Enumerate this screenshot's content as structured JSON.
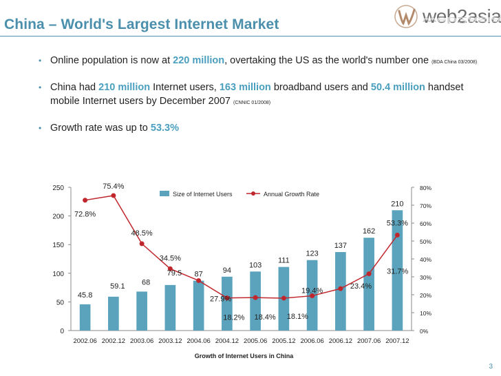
{
  "slide": {
    "title": "China – World's Largest Internet Market",
    "logo_text": "web2asia",
    "page_number": "3",
    "colors": {
      "accent": "#4a8fab",
      "highlight": "#4a9fbf",
      "bar": "#5ba3bd",
      "line": "#c0272d"
    }
  },
  "bullets": [
    {
      "parts": [
        {
          "t": "Online population is now at "
        },
        {
          "t": "220 million",
          "hl": true
        },
        {
          "t": ", overtaking the US as the world's number one "
        },
        {
          "t": "(BDA China 03/2008)",
          "src": true
        }
      ]
    },
    {
      "parts": [
        {
          "t": "China had "
        },
        {
          "t": "210 million",
          "hl": true
        },
        {
          "t": " Internet users, "
        },
        {
          "t": "163 million",
          "hl": true
        },
        {
          "t": " broadband users and "
        },
        {
          "t": "50.4 million",
          "hl": true
        },
        {
          "t": " handset mobile Internet users by December 2007 "
        },
        {
          "t": "(CNNIC 01/2008)",
          "src": true
        }
      ]
    },
    {
      "parts": [
        {
          "t": "Growth rate was up to "
        },
        {
          "t": "53.3%",
          "hl": true
        }
      ]
    }
  ],
  "chart_data": {
    "type": "bar",
    "title": "Growth of Internet Users in China",
    "categories": [
      "2002.06",
      "2002.12",
      "2003.06",
      "2003.12",
      "2004.06",
      "2004.12",
      "2005.06",
      "2005.12",
      "2006.06",
      "2006.12",
      "2007.06",
      "2007.12"
    ],
    "series": [
      {
        "name": "Size of Internet Users",
        "type": "bar",
        "axis": "left",
        "values": [
          45.8,
          59.1,
          68,
          79.5,
          87,
          94,
          103,
          111,
          123,
          137,
          162,
          210
        ],
        "labels": [
          "45.8",
          "59.1",
          "68",
          "79.5",
          "87",
          "94",
          "103",
          "111",
          "123",
          "137",
          "162",
          "210"
        ]
      },
      {
        "name": "Annual Growth Rate",
        "type": "line",
        "axis": "right",
        "values": [
          72.8,
          75.4,
          48.5,
          34.5,
          27.9,
          18.2,
          18.4,
          18.1,
          19.4,
          23.4,
          31.7,
          53.3
        ],
        "labels": [
          "72.8%",
          "75.4%",
          "48.5%",
          "34.5%",
          "27.9%",
          "18.2%",
          "18.4%",
          "18.1%",
          "19.4%",
          "23.4%",
          "31.7%",
          "53.3%"
        ]
      }
    ],
    "y_left": {
      "min": 0,
      "max": 250,
      "ticks": [
        0,
        50,
        100,
        150,
        200,
        250
      ],
      "tick_labels": [
        "0",
        "50",
        "100",
        "150",
        "200",
        "250"
      ]
    },
    "y_right": {
      "min": 0,
      "max": 80,
      "ticks": [
        0,
        10,
        20,
        30,
        40,
        50,
        60,
        70,
        80
      ],
      "tick_labels": [
        "0%",
        "10%",
        "20%",
        "30%",
        "40%",
        "50%",
        "60%",
        "70%",
        "80%"
      ]
    },
    "legend": "top-center"
  }
}
